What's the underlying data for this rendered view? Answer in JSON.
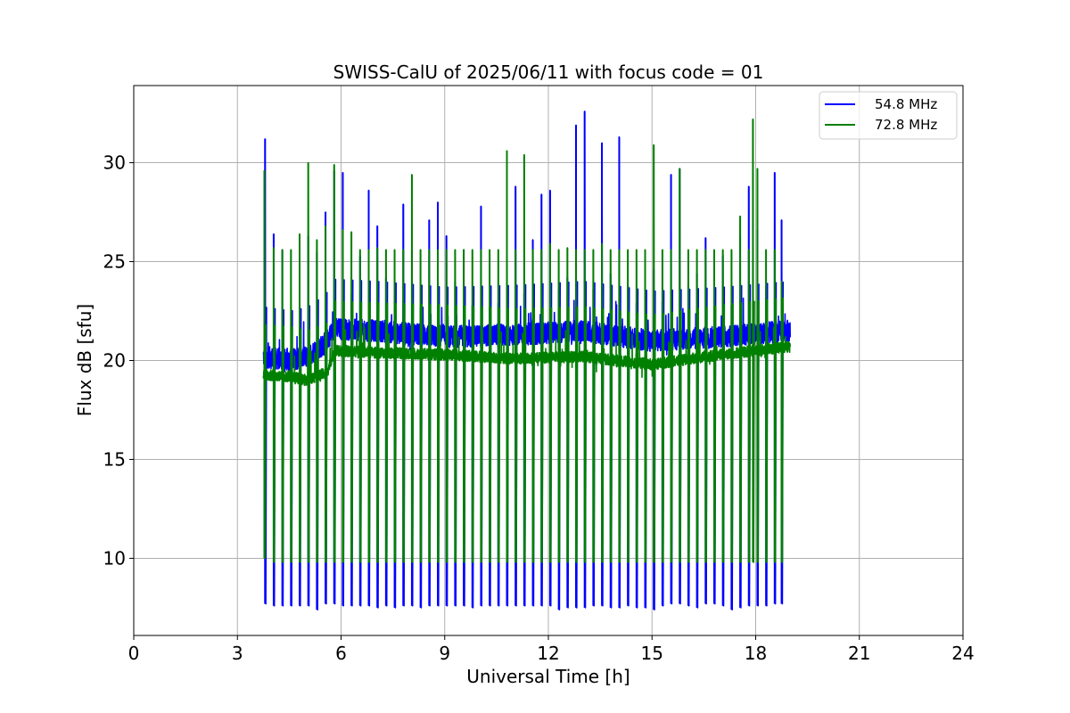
{
  "chart_data": {
    "type": "line",
    "title": "SWISS-CalU of 2025/06/11 with focus code = 01",
    "xlabel": "Universal Time [h]",
    "ylabel": "Flux dB [sfu]",
    "xlim": [
      0,
      24
    ],
    "ylim": [
      6.1,
      33.9
    ],
    "xticks": [
      0,
      3,
      6,
      9,
      12,
      15,
      18,
      21,
      24
    ],
    "yticks": [
      10,
      15,
      20,
      25,
      30
    ],
    "grid": true,
    "legend_position": "top-right",
    "colors": {
      "54.8 MHz": "#0000ff",
      "72.8 MHz": "#008000"
    },
    "series": [
      {
        "name": "54.8 MHz",
        "color": "#0000ff",
        "x_range": [
          3.75,
          19.0
        ],
        "baseline": [
          [
            3.75,
            20.2
          ],
          [
            4.5,
            20.0
          ],
          [
            5.0,
            20.2
          ],
          [
            5.5,
            20.8
          ],
          [
            5.8,
            21.6
          ],
          [
            7.0,
            21.5
          ],
          [
            9.0,
            21.2
          ],
          [
            11.0,
            21.3
          ],
          [
            13.0,
            21.5
          ],
          [
            15.0,
            21.0
          ],
          [
            17.0,
            21.2
          ],
          [
            19.0,
            21.5
          ]
        ],
        "spikes": [
          {
            "x": 3.8,
            "peak": 31.2,
            "dip": 7.7
          },
          {
            "x": 4.05,
            "peak": 26.4,
            "dip": 7.6
          },
          {
            "x": 4.3,
            "peak": 25.6,
            "dip": 7.6
          },
          {
            "x": 4.55,
            "peak": 20.6,
            "dip": 7.6
          },
          {
            "x": 4.8,
            "peak": 23.4,
            "dip": 7.6
          },
          {
            "x": 5.05,
            "peak": 26.3,
            "dip": 7.6
          },
          {
            "x": 5.3,
            "peak": 25.5,
            "dip": 7.4
          },
          {
            "x": 5.55,
            "peak": 27.5,
            "dip": 7.7
          },
          {
            "x": 5.8,
            "peak": 29.6,
            "dip": 7.7
          },
          {
            "x": 6.05,
            "peak": 29.5,
            "dip": 7.6
          },
          {
            "x": 6.3,
            "peak": 23.4,
            "dip": 7.6
          },
          {
            "x": 6.55,
            "peak": 25.3,
            "dip": 7.6
          },
          {
            "x": 6.8,
            "peak": 28.6,
            "dip": 7.6
          },
          {
            "x": 7.05,
            "peak": 26.8,
            "dip": 7.5
          },
          {
            "x": 7.3,
            "peak": 24.2,
            "dip": 7.6
          },
          {
            "x": 7.55,
            "peak": 22.6,
            "dip": 7.5
          },
          {
            "x": 7.8,
            "peak": 27.9,
            "dip": 7.6
          },
          {
            "x": 8.05,
            "peak": 25.6,
            "dip": 7.6
          },
          {
            "x": 8.3,
            "peak": 22.7,
            "dip": 7.5
          },
          {
            "x": 8.55,
            "peak": 27.1,
            "dip": 7.6
          },
          {
            "x": 8.8,
            "peak": 28.0,
            "dip": 7.6
          },
          {
            "x": 9.05,
            "peak": 26.3,
            "dip": 7.6
          },
          {
            "x": 9.3,
            "peak": 24.0,
            "dip": 7.6
          },
          {
            "x": 9.55,
            "peak": 25.6,
            "dip": 7.6
          },
          {
            "x": 9.8,
            "peak": 22.8,
            "dip": 7.5
          },
          {
            "x": 10.05,
            "peak": 27.8,
            "dip": 7.6
          },
          {
            "x": 10.3,
            "peak": 22.7,
            "dip": 7.6
          },
          {
            "x": 10.55,
            "peak": 22.9,
            "dip": 7.6
          },
          {
            "x": 10.8,
            "peak": 27.8,
            "dip": 7.6
          },
          {
            "x": 11.05,
            "peak": 28.8,
            "dip": 7.6
          },
          {
            "x": 11.3,
            "peak": 23.4,
            "dip": 7.6
          },
          {
            "x": 11.55,
            "peak": 26.1,
            "dip": 7.6
          },
          {
            "x": 11.8,
            "peak": 28.4,
            "dip": 7.6
          },
          {
            "x": 12.05,
            "peak": 28.6,
            "dip": 7.6
          },
          {
            "x": 12.3,
            "peak": 23.6,
            "dip": 7.4
          },
          {
            "x": 12.55,
            "peak": 24.2,
            "dip": 7.5
          },
          {
            "x": 12.8,
            "peak": 31.9,
            "dip": 7.5
          },
          {
            "x": 13.05,
            "peak": 32.6,
            "dip": 7.5
          },
          {
            "x": 13.3,
            "peak": 23.6,
            "dip": 7.6
          },
          {
            "x": 13.55,
            "peak": 31.0,
            "dip": 7.6
          },
          {
            "x": 13.8,
            "peak": 24.4,
            "dip": 7.5
          },
          {
            "x": 14.05,
            "peak": 31.3,
            "dip": 7.5
          },
          {
            "x": 14.3,
            "peak": 23.8,
            "dip": 7.6
          },
          {
            "x": 14.55,
            "peak": 22.9,
            "dip": 7.5
          },
          {
            "x": 14.8,
            "peak": 22.4,
            "dip": 7.5
          },
          {
            "x": 15.05,
            "peak": 24.6,
            "dip": 7.4
          },
          {
            "x": 15.3,
            "peak": 23.0,
            "dip": 7.6
          },
          {
            "x": 15.55,
            "peak": 29.4,
            "dip": 7.7
          },
          {
            "x": 15.8,
            "peak": 29.7,
            "dip": 7.7
          },
          {
            "x": 16.05,
            "peak": 23.9,
            "dip": 7.6
          },
          {
            "x": 16.3,
            "peak": 24.4,
            "dip": 7.5
          },
          {
            "x": 16.55,
            "peak": 26.2,
            "dip": 7.7
          },
          {
            "x": 16.8,
            "peak": 23.3,
            "dip": 7.7
          },
          {
            "x": 17.05,
            "peak": 25.3,
            "dip": 7.6
          },
          {
            "x": 17.3,
            "peak": 22.8,
            "dip": 7.4
          },
          {
            "x": 17.55,
            "peak": 26.3,
            "dip": 7.5
          },
          {
            "x": 17.8,
            "peak": 28.8,
            "dip": 7.6
          },
          {
            "x": 18.05,
            "peak": 26.6,
            "dip": 7.6
          },
          {
            "x": 18.3,
            "peak": 23.6,
            "dip": 7.6
          },
          {
            "x": 18.55,
            "peak": 29.5,
            "dip": 7.7
          },
          {
            "x": 18.75,
            "peak": 27.1,
            "dip": 7.7
          }
        ]
      },
      {
        "name": "72.8 MHz",
        "color": "#008000",
        "x_range": [
          3.75,
          19.0
        ],
        "baseline": [
          [
            3.75,
            19.3
          ],
          [
            4.5,
            19.2
          ],
          [
            5.0,
            19.0
          ],
          [
            5.6,
            19.4
          ],
          [
            5.8,
            20.5
          ],
          [
            7.0,
            20.4
          ],
          [
            9.0,
            20.3
          ],
          [
            11.0,
            20.1
          ],
          [
            13.0,
            20.2
          ],
          [
            15.0,
            19.8
          ],
          [
            17.0,
            20.3
          ],
          [
            19.0,
            20.7
          ]
        ],
        "spikes": [
          {
            "x": 3.78,
            "peak": 29.6,
            "dip": 10.0
          },
          {
            "x": 4.05,
            "peak": 25.7,
            "dip": 9.8
          },
          {
            "x": 4.3,
            "peak": 25.6,
            "dip": 9.8
          },
          {
            "x": 4.55,
            "peak": 25.6,
            "dip": 9.8
          },
          {
            "x": 4.8,
            "peak": 26.4,
            "dip": 9.8
          },
          {
            "x": 5.05,
            "peak": 30.0,
            "dip": 9.8
          },
          {
            "x": 5.3,
            "peak": 26.1,
            "dip": 9.8
          },
          {
            "x": 5.55,
            "peak": 26.8,
            "dip": 9.8
          },
          {
            "x": 5.8,
            "peak": 29.9,
            "dip": 9.8
          },
          {
            "x": 6.05,
            "peak": 26.6,
            "dip": 9.8
          },
          {
            "x": 6.3,
            "peak": 26.5,
            "dip": 9.8
          },
          {
            "x": 6.55,
            "peak": 25.6,
            "dip": 9.8
          },
          {
            "x": 6.8,
            "peak": 25.6,
            "dip": 9.8
          },
          {
            "x": 7.05,
            "peak": 25.7,
            "dip": 9.8
          },
          {
            "x": 7.3,
            "peak": 25.6,
            "dip": 9.8
          },
          {
            "x": 7.55,
            "peak": 25.6,
            "dip": 9.8
          },
          {
            "x": 7.8,
            "peak": 25.6,
            "dip": 9.8
          },
          {
            "x": 8.05,
            "peak": 29.4,
            "dip": 9.8
          },
          {
            "x": 8.3,
            "peak": 25.6,
            "dip": 9.8
          },
          {
            "x": 8.55,
            "peak": 25.6,
            "dip": 9.8
          },
          {
            "x": 8.8,
            "peak": 25.6,
            "dip": 9.8
          },
          {
            "x": 9.05,
            "peak": 25.6,
            "dip": 9.8
          },
          {
            "x": 9.3,
            "peak": 25.6,
            "dip": 9.8
          },
          {
            "x": 9.55,
            "peak": 25.6,
            "dip": 9.8
          },
          {
            "x": 9.8,
            "peak": 25.6,
            "dip": 9.8
          },
          {
            "x": 10.05,
            "peak": 25.6,
            "dip": 9.8
          },
          {
            "x": 10.3,
            "peak": 25.6,
            "dip": 9.8
          },
          {
            "x": 10.55,
            "peak": 25.6,
            "dip": 9.8
          },
          {
            "x": 10.8,
            "peak": 30.6,
            "dip": 9.8
          },
          {
            "x": 11.05,
            "peak": 25.6,
            "dip": 9.8
          },
          {
            "x": 11.3,
            "peak": 30.4,
            "dip": 9.8
          },
          {
            "x": 11.55,
            "peak": 25.6,
            "dip": 9.8
          },
          {
            "x": 11.8,
            "peak": 25.6,
            "dip": 9.8
          },
          {
            "x": 12.05,
            "peak": 25.9,
            "dip": 9.8
          },
          {
            "x": 12.3,
            "peak": 25.6,
            "dip": 9.8
          },
          {
            "x": 12.55,
            "peak": 25.7,
            "dip": 9.8
          },
          {
            "x": 12.8,
            "peak": 25.6,
            "dip": 9.8
          },
          {
            "x": 13.05,
            "peak": 25.6,
            "dip": 9.8
          },
          {
            "x": 13.3,
            "peak": 25.6,
            "dip": 9.8
          },
          {
            "x": 13.55,
            "peak": 25.9,
            "dip": 9.8
          },
          {
            "x": 13.8,
            "peak": 25.6,
            "dip": 9.8
          },
          {
            "x": 14.05,
            "peak": 25.6,
            "dip": 9.8
          },
          {
            "x": 14.3,
            "peak": 25.6,
            "dip": 9.8
          },
          {
            "x": 14.55,
            "peak": 25.6,
            "dip": 9.8
          },
          {
            "x": 14.8,
            "peak": 25.6,
            "dip": 9.8
          },
          {
            "x": 15.05,
            "peak": 30.9,
            "dip": 9.8
          },
          {
            "x": 15.3,
            "peak": 25.6,
            "dip": 9.8
          },
          {
            "x": 15.55,
            "peak": 25.6,
            "dip": 9.8
          },
          {
            "x": 15.8,
            "peak": 29.7,
            "dip": 9.8
          },
          {
            "x": 16.05,
            "peak": 25.6,
            "dip": 9.8
          },
          {
            "x": 16.3,
            "peak": 25.6,
            "dip": 9.8
          },
          {
            "x": 16.55,
            "peak": 25.6,
            "dip": 9.8
          },
          {
            "x": 16.8,
            "peak": 25.6,
            "dip": 9.8
          },
          {
            "x": 17.05,
            "peak": 25.6,
            "dip": 9.8
          },
          {
            "x": 17.3,
            "peak": 25.6,
            "dip": 9.8
          },
          {
            "x": 17.55,
            "peak": 27.3,
            "dip": 9.8
          },
          {
            "x": 17.8,
            "peak": 25.6,
            "dip": 9.8
          },
          {
            "x": 17.92,
            "peak": 32.2,
            "dip": 9.8
          },
          {
            "x": 18.05,
            "peak": 29.7,
            "dip": 9.8
          },
          {
            "x": 18.3,
            "peak": 25.6,
            "dip": 9.8
          },
          {
            "x": 18.55,
            "peak": 25.6,
            "dip": 9.8
          },
          {
            "x": 18.75,
            "peak": 24.0,
            "dip": 9.8
          }
        ]
      }
    ]
  }
}
